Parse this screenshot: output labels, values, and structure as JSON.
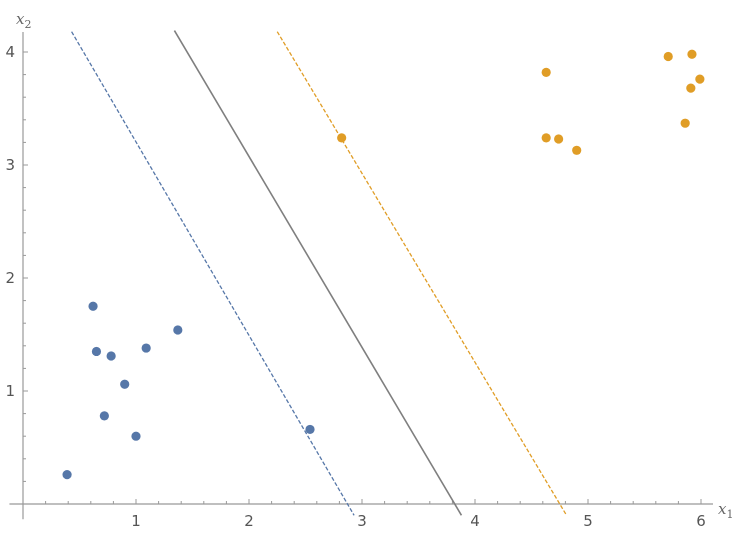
{
  "chart_data": {
    "type": "scatter",
    "title": "",
    "xlabel": "x",
    "xlabel_sub": "1",
    "ylabel": "x",
    "ylabel_sub": "2",
    "xlim": [
      -0.12,
      6.1
    ],
    "ylim": [
      -0.1,
      4.2
    ],
    "xticks": [
      1,
      2,
      3,
      4,
      5,
      6
    ],
    "yticks": [
      1,
      2,
      3,
      4
    ],
    "grid": false,
    "series": [
      {
        "color": "#5677a8",
        "points": [
          [
            0.39,
            0.26
          ],
          [
            0.62,
            1.75
          ],
          [
            0.65,
            1.35
          ],
          [
            0.78,
            1.31
          ],
          [
            1.09,
            1.38
          ],
          [
            1.37,
            1.54
          ],
          [
            0.9,
            1.06
          ],
          [
            0.72,
            0.78
          ],
          [
            1.0,
            0.6
          ],
          [
            2.54,
            0.66
          ]
        ]
      },
      {
        "color": "#e09d26",
        "points": [
          [
            2.82,
            3.24
          ],
          [
            4.63,
            3.82
          ],
          [
            4.63,
            3.24
          ],
          [
            4.74,
            3.23
          ],
          [
            4.9,
            3.13
          ],
          [
            5.71,
            3.96
          ],
          [
            5.92,
            3.98
          ],
          [
            5.99,
            3.76
          ],
          [
            5.91,
            3.68
          ],
          [
            5.86,
            3.37
          ]
        ]
      }
    ],
    "lines": [
      {
        "role": "margin",
        "color": "#5677a8",
        "dashed": true,
        "from": [
          0.43,
          4.18
        ],
        "to": [
          2.93,
          -0.1
        ]
      },
      {
        "role": "decision-boundary",
        "color": "#7f7f7f",
        "dashed": false,
        "from": [
          1.34,
          4.19
        ],
        "to": [
          3.88,
          -0.1
        ]
      },
      {
        "role": "margin",
        "color": "#e09d26",
        "dashed": true,
        "from": [
          2.25,
          4.18
        ],
        "to": [
          4.81,
          -0.1
        ]
      }
    ]
  }
}
